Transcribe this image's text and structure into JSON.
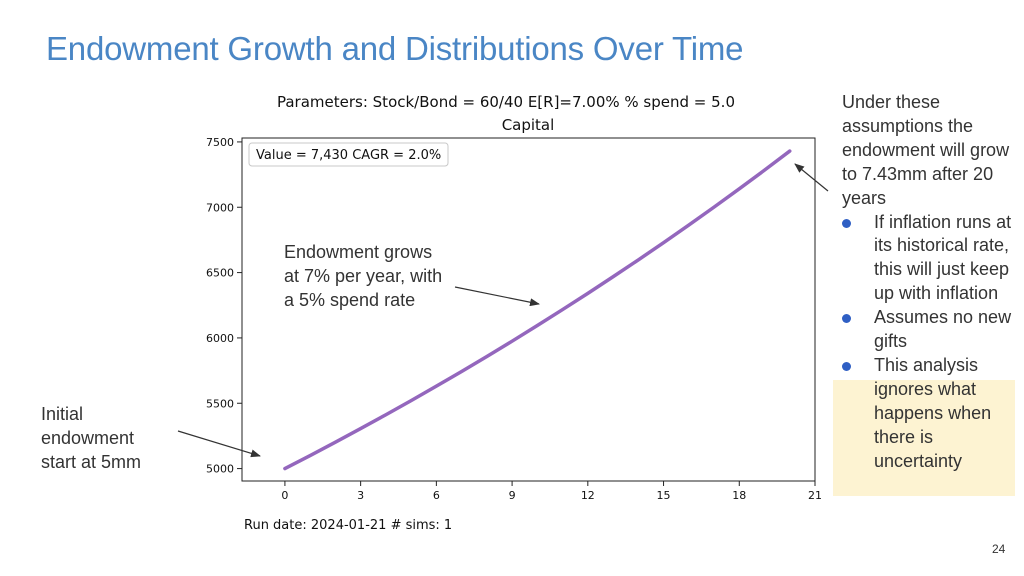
{
  "slide": {
    "title": "Endowment Growth and Distributions Over Time",
    "page_number": "24"
  },
  "chart_data": {
    "type": "line",
    "suptitle": "Parameters: Stock/Bond = 60/40 E[R]=7.00%  % spend = 5.0",
    "title": "Capital",
    "xlabel": "",
    "ylabel": "",
    "xlim": [
      -1.7,
      21
    ],
    "ylim": [
      4905,
      7530
    ],
    "xticks": [
      0,
      3,
      6,
      9,
      12,
      15,
      18,
      21
    ],
    "yticks": [
      5000,
      5500,
      6000,
      6500,
      7000,
      7500
    ],
    "grid": false,
    "series": [
      {
        "color": "#9467bd",
        "x": [
          0,
          1,
          2,
          3,
          4,
          5,
          6,
          7,
          8,
          9,
          10,
          11,
          12,
          13,
          14,
          15,
          16,
          17,
          18,
          19,
          20
        ],
        "values": [
          5000,
          5100,
          5202,
          5306,
          5412,
          5520,
          5631,
          5743,
          5858,
          5975,
          6095,
          6217,
          6341,
          6468,
          6597,
          6729,
          6864,
          7001,
          7141,
          7284,
          7430
        ]
      }
    ],
    "annotation_box": "Value = 7,430  CAGR = 2.0%",
    "footer": "Run date: 2024-01-21  # sims: 1"
  },
  "callouts": {
    "growth": "Endowment grows at 7% per year, with a 5% spend rate",
    "initial": "Initial endowment start at 5mm"
  },
  "side_panel": {
    "intro": "Under these assumptions the endowment will grow to 7.43mm after 20 years",
    "bullets": [
      " If inflation runs at its historical rate, this will just keep up with inflation",
      " Assumes no new gifts",
      " This analysis ignores what happens when there is uncertainty"
    ],
    "bullet_color": "#2f5fc4",
    "highlight_color": "#fdf3d2"
  }
}
